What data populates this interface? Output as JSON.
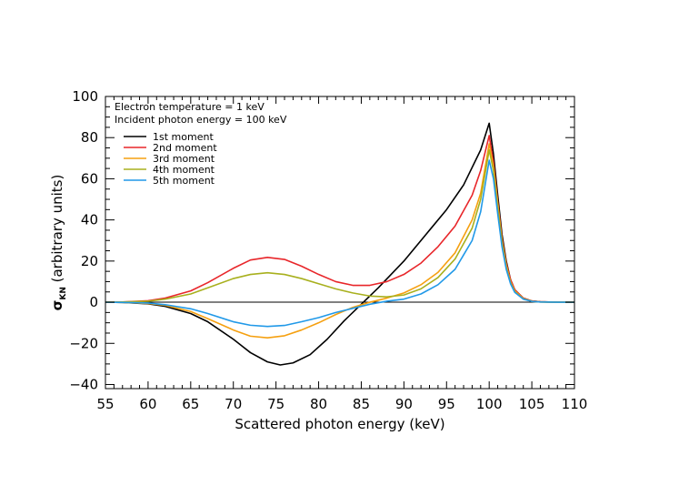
{
  "chart_data": {
    "type": "line",
    "title": "",
    "xlabel": "Scattered photon energy (keV)",
    "ylabel_main": "σ",
    "ylabel_sub": "KN",
    "ylabel_rest": " (arbitrary units)",
    "xlim": [
      55,
      110
    ],
    "ylim": [
      -42,
      100
    ],
    "xticks": [
      55,
      60,
      65,
      70,
      75,
      80,
      85,
      90,
      95,
      100,
      105,
      110
    ],
    "yticks": [
      -40,
      -20,
      0,
      20,
      40,
      60,
      80,
      100
    ],
    "grid": false,
    "zero_line": true,
    "legend_position": "top-left",
    "annotations": [
      "Electron temperature = 1 keV",
      "Incident photon energy = 100 keV"
    ],
    "series": [
      {
        "name": "1st moment",
        "color": "#000000",
        "points": [
          [
            55,
            0
          ],
          [
            57,
            -0.1
          ],
          [
            60,
            -0.8
          ],
          [
            62,
            -2
          ],
          [
            65,
            -5.5
          ],
          [
            67,
            -9.5
          ],
          [
            70,
            -18
          ],
          [
            72,
            -24.5
          ],
          [
            74,
            -29
          ],
          [
            75.5,
            -30.5
          ],
          [
            77,
            -29.5
          ],
          [
            79,
            -25.5
          ],
          [
            81,
            -18
          ],
          [
            83,
            -9
          ],
          [
            85,
            -1
          ],
          [
            87,
            7
          ],
          [
            90,
            20
          ],
          [
            93,
            35
          ],
          [
            95,
            45
          ],
          [
            97,
            57
          ],
          [
            99,
            74
          ],
          [
            100,
            87
          ],
          [
            100.5,
            72
          ],
          [
            101,
            52
          ],
          [
            101.5,
            33
          ],
          [
            102,
            20
          ],
          [
            102.5,
            11
          ],
          [
            103,
            6
          ],
          [
            104,
            2
          ],
          [
            105,
            0.6
          ],
          [
            106,
            0.2
          ],
          [
            108,
            0
          ],
          [
            110,
            0
          ]
        ]
      },
      {
        "name": "2nd moment",
        "color": "#e8262a",
        "points": [
          [
            55,
            0
          ],
          [
            57,
            0.1
          ],
          [
            60,
            0.7
          ],
          [
            62,
            2
          ],
          [
            65,
            5.5
          ],
          [
            67,
            9.5
          ],
          [
            70,
            16.5
          ],
          [
            72,
            20.5
          ],
          [
            74,
            21.8
          ],
          [
            76,
            20.8
          ],
          [
            78,
            17.5
          ],
          [
            80,
            13.5
          ],
          [
            82,
            10
          ],
          [
            84,
            8.2
          ],
          [
            86,
            8.2
          ],
          [
            88,
            10
          ],
          [
            90,
            13.5
          ],
          [
            92,
            19
          ],
          [
            94,
            27
          ],
          [
            96,
            37
          ],
          [
            98,
            52
          ],
          [
            99,
            64
          ],
          [
            100,
            81
          ],
          [
            100.5,
            68
          ],
          [
            101,
            49
          ],
          [
            101.5,
            31
          ],
          [
            102,
            19
          ],
          [
            102.5,
            11
          ],
          [
            103,
            6
          ],
          [
            104,
            2
          ],
          [
            105,
            0.6
          ],
          [
            106,
            0.2
          ],
          [
            108,
            0
          ],
          [
            110,
            0
          ]
        ]
      },
      {
        "name": "3rd moment",
        "color": "#f5a010",
        "points": [
          [
            55,
            0
          ],
          [
            57,
            -0.1
          ],
          [
            60,
            -0.6
          ],
          [
            62,
            -1.5
          ],
          [
            65,
            -4.5
          ],
          [
            67,
            -8
          ],
          [
            70,
            -13.5
          ],
          [
            72,
            -16.5
          ],
          [
            74,
            -17.3
          ],
          [
            76,
            -16.3
          ],
          [
            78,
            -13.5
          ],
          [
            80,
            -10
          ],
          [
            82,
            -6
          ],
          [
            84,
            -2.5
          ],
          [
            86,
            0
          ],
          [
            88,
            2
          ],
          [
            90,
            4.5
          ],
          [
            92,
            8.5
          ],
          [
            94,
            14.5
          ],
          [
            96,
            24
          ],
          [
            98,
            40
          ],
          [
            99,
            53
          ],
          [
            100,
            77
          ],
          [
            100.5,
            66
          ],
          [
            101,
            48
          ],
          [
            101.5,
            30
          ],
          [
            102,
            18
          ],
          [
            102.5,
            10
          ],
          [
            103,
            5.5
          ],
          [
            104,
            1.8
          ],
          [
            105,
            0.5
          ],
          [
            106,
            0.1
          ],
          [
            108,
            0
          ],
          [
            110,
            0
          ]
        ]
      },
      {
        "name": "4th moment",
        "color": "#a8b01e",
        "points": [
          [
            55,
            0
          ],
          [
            57,
            0.1
          ],
          [
            60,
            0.5
          ],
          [
            62,
            1.5
          ],
          [
            65,
            4
          ],
          [
            67,
            7
          ],
          [
            70,
            11.5
          ],
          [
            72,
            13.5
          ],
          [
            74,
            14.3
          ],
          [
            76,
            13.5
          ],
          [
            78,
            11.5
          ],
          [
            80,
            9
          ],
          [
            82,
            6.5
          ],
          [
            84,
            4.5
          ],
          [
            86,
            3
          ],
          [
            88,
            2.6
          ],
          [
            90,
            3.5
          ],
          [
            92,
            6.5
          ],
          [
            94,
            12
          ],
          [
            96,
            21
          ],
          [
            98,
            36
          ],
          [
            99,
            50
          ],
          [
            100,
            74
          ],
          [
            100.5,
            64
          ],
          [
            101,
            46
          ],
          [
            101.5,
            29
          ],
          [
            102,
            17
          ],
          [
            102.5,
            9.5
          ],
          [
            103,
            5
          ],
          [
            104,
            1.6
          ],
          [
            105,
            0.4
          ],
          [
            106,
            0.1
          ],
          [
            108,
            0
          ],
          [
            110,
            0
          ]
        ]
      },
      {
        "name": "5th moment",
        "color": "#2199e8",
        "points": [
          [
            55,
            0
          ],
          [
            57,
            -0.1
          ],
          [
            60,
            -0.4
          ],
          [
            62,
            -1.2
          ],
          [
            65,
            -3.2
          ],
          [
            67,
            -5.5
          ],
          [
            70,
            -9.5
          ],
          [
            72,
            -11.2
          ],
          [
            74,
            -11.8
          ],
          [
            76,
            -11.3
          ],
          [
            78,
            -9.5
          ],
          [
            80,
            -7.5
          ],
          [
            82,
            -5
          ],
          [
            84,
            -3
          ],
          [
            86,
            -1
          ],
          [
            88,
            0.5
          ],
          [
            90,
            1.5
          ],
          [
            92,
            4
          ],
          [
            94,
            8.5
          ],
          [
            96,
            16
          ],
          [
            98,
            30
          ],
          [
            99,
            44
          ],
          [
            100,
            69
          ],
          [
            100.5,
            60
          ],
          [
            101,
            43
          ],
          [
            101.5,
            27
          ],
          [
            102,
            16
          ],
          [
            102.5,
            9
          ],
          [
            103,
            4.8
          ],
          [
            104,
            1.5
          ],
          [
            105,
            0.4
          ],
          [
            106,
            0.1
          ],
          [
            108,
            0
          ],
          [
            110,
            0
          ]
        ]
      }
    ]
  }
}
